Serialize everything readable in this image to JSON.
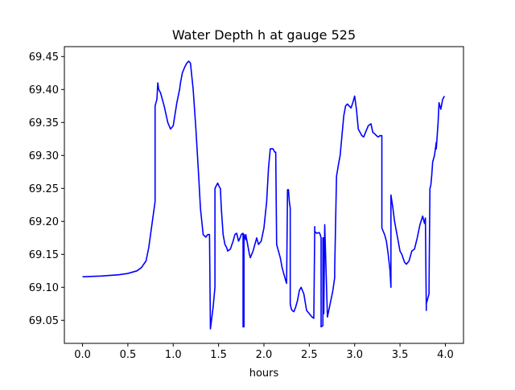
{
  "chart_data": {
    "type": "line",
    "title": "Water Depth h at gauge 525",
    "xlabel": "hours",
    "ylabel": "",
    "xlim": [
      -0.2,
      4.2
    ],
    "ylim": [
      69.015,
      69.465
    ],
    "x_ticks": [
      0.0,
      0.5,
      1.0,
      1.5,
      2.0,
      2.5,
      3.0,
      3.5,
      4.0
    ],
    "x_tick_labels": [
      "0.0",
      "0.5",
      "1.0",
      "1.5",
      "2.0",
      "2.5",
      "3.0",
      "3.5",
      "4.0"
    ],
    "y_ticks": [
      69.05,
      69.1,
      69.15,
      69.2,
      69.25,
      69.3,
      69.35,
      69.4,
      69.45
    ],
    "y_tick_labels": [
      "69.05",
      "69.10",
      "69.15",
      "69.20",
      "69.25",
      "69.30",
      "69.35",
      "69.40",
      "69.45"
    ],
    "grid": false,
    "series": [
      {
        "name": "",
        "color": "#0000ff",
        "x": [
          0.0,
          0.2,
          0.4,
          0.5,
          0.6,
          0.65,
          0.7,
          0.73,
          0.76,
          0.79,
          0.8,
          0.8,
          0.82,
          0.83,
          0.84,
          0.86,
          0.9,
          0.94,
          0.97,
          1.0,
          1.04,
          1.07,
          1.08,
          1.1,
          1.13,
          1.15,
          1.17,
          1.19,
          1.22,
          1.25,
          1.28,
          1.3,
          1.33,
          1.36,
          1.38,
          1.4,
          1.41,
          1.41,
          1.44,
          1.46,
          1.46,
          1.49,
          1.51,
          1.52,
          1.53,
          1.55,
          1.57,
          1.59,
          1.6,
          1.63,
          1.66,
          1.68,
          1.7,
          1.72,
          1.74,
          1.75,
          1.77,
          1.77,
          1.78,
          1.78,
          1.8,
          1.8,
          1.82,
          1.84,
          1.85,
          1.88,
          1.9,
          1.92,
          1.94,
          1.97,
          2.0,
          2.03,
          2.05,
          2.07,
          2.1,
          2.12,
          2.13,
          2.14,
          2.15,
          2.15,
          2.18,
          2.2,
          2.22,
          2.24,
          2.25,
          2.26,
          2.27,
          2.28,
          2.29,
          2.29,
          2.3,
          2.31,
          2.33,
          2.35,
          2.37,
          2.39,
          2.41,
          2.44,
          2.47,
          2.5,
          2.53,
          2.55,
          2.56,
          2.56,
          2.58,
          2.61,
          2.62,
          2.63,
          2.63,
          2.65,
          2.65,
          2.66,
          2.66,
          2.67,
          2.67,
          2.7,
          2.73,
          2.76,
          2.78,
          2.78,
          2.8,
          2.82,
          2.84,
          2.86,
          2.88,
          2.9,
          2.92,
          2.94,
          2.96,
          2.98,
          3.0,
          3.02,
          3.04,
          3.06,
          3.08,
          3.1,
          3.12,
          3.15,
          3.18,
          3.2,
          3.22,
          3.24,
          3.26,
          3.28,
          3.3,
          3.3,
          3.33,
          3.35,
          3.37,
          3.39,
          3.4,
          3.4,
          3.42,
          3.44,
          3.46,
          3.48,
          3.5,
          3.52,
          3.55,
          3.57,
          3.6,
          3.63,
          3.66,
          3.69,
          3.72,
          3.75,
          3.77,
          3.78,
          3.79,
          3.79,
          3.82,
          3.82,
          3.83,
          3.84,
          3.85,
          3.86,
          3.88,
          3.89,
          3.9,
          3.9,
          3.92,
          3.93,
          3.95,
          3.97,
          3.99
        ],
        "y": [
          69.116,
          69.117,
          69.119,
          69.121,
          69.125,
          69.13,
          69.14,
          69.16,
          69.19,
          69.22,
          69.23,
          69.375,
          69.385,
          69.41,
          69.4,
          69.395,
          69.375,
          69.35,
          69.34,
          69.345,
          69.38,
          69.4,
          69.41,
          69.425,
          69.435,
          69.44,
          69.443,
          69.44,
          69.4,
          69.34,
          69.27,
          69.22,
          69.18,
          69.176,
          69.18,
          69.18,
          69.037,
          69.037,
          69.07,
          69.1,
          69.25,
          69.258,
          69.252,
          69.25,
          69.22,
          69.18,
          69.165,
          69.16,
          69.155,
          69.158,
          69.17,
          69.18,
          69.182,
          69.17,
          69.176,
          69.18,
          69.182,
          69.04,
          69.04,
          69.18,
          69.172,
          69.18,
          69.165,
          69.15,
          69.145,
          69.155,
          69.165,
          69.175,
          69.165,
          69.17,
          69.19,
          69.23,
          69.28,
          69.31,
          69.31,
          69.305,
          69.305,
          69.165,
          69.16,
          69.16,
          69.145,
          69.13,
          69.12,
          69.11,
          69.106,
          69.248,
          69.248,
          69.23,
          69.22,
          69.075,
          69.068,
          69.065,
          69.063,
          69.07,
          69.08,
          69.095,
          69.1,
          69.09,
          69.065,
          69.06,
          69.055,
          69.053,
          69.192,
          69.185,
          69.182,
          69.183,
          69.18,
          69.175,
          69.04,
          69.042,
          69.175,
          69.175,
          69.06,
          69.195,
          69.195,
          69.055,
          69.075,
          69.095,
          69.115,
          69.127,
          69.268,
          69.285,
          69.3,
          69.33,
          69.36,
          69.375,
          69.378,
          69.375,
          69.372,
          69.38,
          69.39,
          69.37,
          69.34,
          69.335,
          69.33,
          69.328,
          69.335,
          69.345,
          69.348,
          69.335,
          69.333,
          69.33,
          69.328,
          69.33,
          69.33,
          69.19,
          69.18,
          69.17,
          69.15,
          69.125,
          69.1,
          69.24,
          69.222,
          69.2,
          69.185,
          69.17,
          69.155,
          69.15,
          69.138,
          69.135,
          69.14,
          69.155,
          69.158,
          69.175,
          69.195,
          69.208,
          69.197,
          69.205,
          69.065,
          69.075,
          69.09,
          69.1,
          69.25,
          69.255,
          69.27,
          69.29,
          69.3,
          69.31,
          69.32,
          69.31,
          69.35,
          69.38,
          69.37,
          69.385,
          69.39
        ]
      }
    ]
  }
}
